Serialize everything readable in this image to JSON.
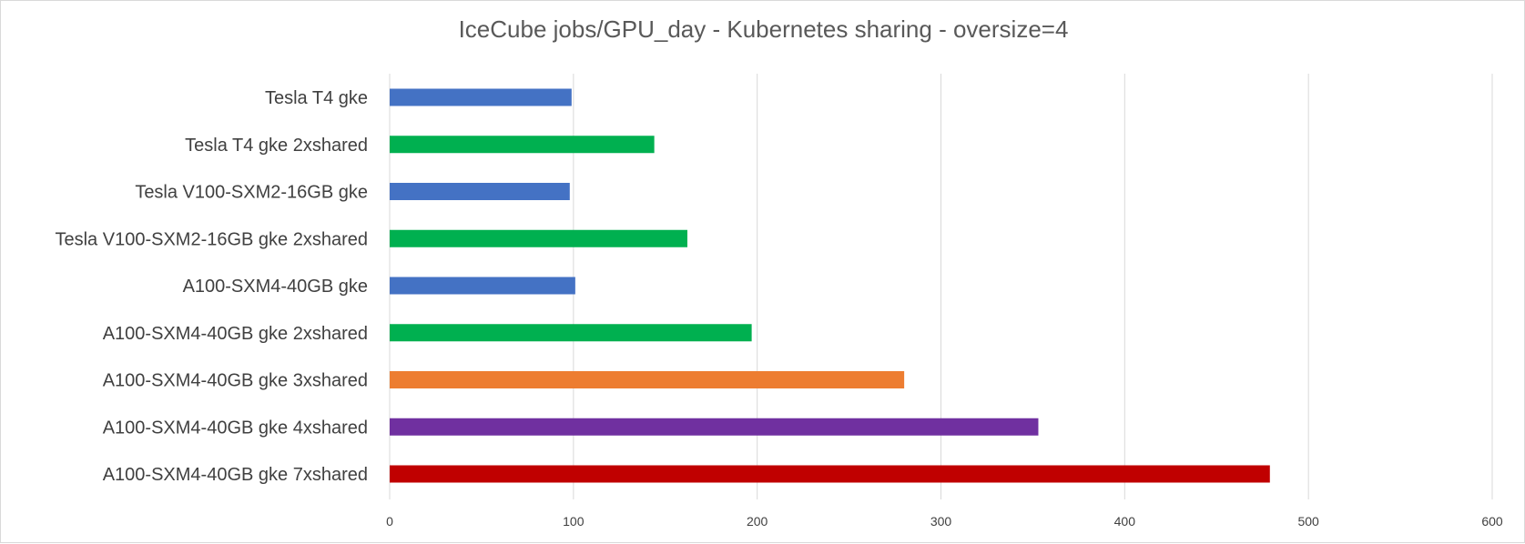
{
  "chart_data": {
    "type": "bar",
    "orientation": "horizontal",
    "title": "IceCube jobs/GPU_day - Kubernetes sharing - oversize=4",
    "xlabel": "",
    "ylabel": "",
    "xlim": [
      0,
      600
    ],
    "x_ticks": [
      0,
      100,
      200,
      300,
      400,
      500,
      600
    ],
    "grid": "vertical",
    "legend": "none",
    "categories": [
      "Tesla T4 gke",
      "Tesla T4 gke 2xshared",
      "Tesla V100-SXM2-16GB gke",
      "Tesla V100-SXM2-16GB gke 2xshared",
      "A100-SXM4-40GB gke",
      "A100-SXM4-40GB gke 2xshared",
      "A100-SXM4-40GB gke 3xshared",
      "A100-SXM4-40GB gke 4xshared",
      "A100-SXM4-40GB gke 7xshared"
    ],
    "values": [
      99,
      144,
      98,
      162,
      101,
      197,
      280,
      353,
      479
    ],
    "colors": [
      "#4472c4",
      "#00b050",
      "#4472c4",
      "#00b050",
      "#4472c4",
      "#00b050",
      "#ed7d31",
      "#7030a0",
      "#c00000"
    ]
  }
}
